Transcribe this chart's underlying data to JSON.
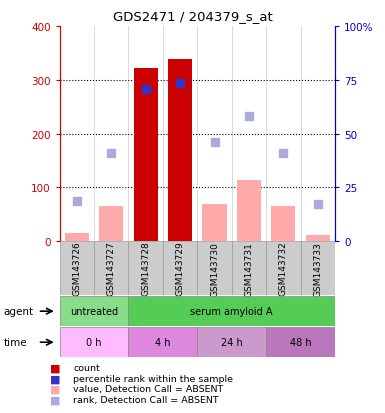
{
  "title": "GDS2471 / 204379_s_at",
  "samples": [
    "GSM143726",
    "GSM143727",
    "GSM143728",
    "GSM143729",
    "GSM143730",
    "GSM143731",
    "GSM143732",
    "GSM143733"
  ],
  "count_values": [
    0,
    0,
    322,
    338,
    0,
    0,
    0,
    0
  ],
  "rank_present_values": [
    null,
    null,
    283,
    293,
    null,
    null,
    null,
    null
  ],
  "value_absent": [
    15,
    65,
    null,
    null,
    70,
    113,
    65,
    12
  ],
  "rank_absent_pct": [
    18.75,
    40.75,
    null,
    null,
    46.25,
    58.25,
    40.75,
    17.5
  ],
  "bar_color_red": "#cc0000",
  "bar_color_pink": "#ffaaaa",
  "dot_color_blue": "#3333cc",
  "dot_color_lightblue": "#aaaadd",
  "ylim_left": [
    0,
    400
  ],
  "ylim_right": [
    0,
    100
  ],
  "yticks_left": [
    0,
    100,
    200,
    300,
    400
  ],
  "ytick_labels_left": [
    "0",
    "100",
    "200",
    "300",
    "400"
  ],
  "yticks_right": [
    0,
    25,
    50,
    75,
    100
  ],
  "ytick_labels_right": [
    "0",
    "25",
    "50",
    "75",
    "100%"
  ],
  "agent_untreated_color": "#88dd88",
  "agent_serum_color": "#55cc55",
  "time_color_0h": "#ffbbff",
  "time_color_4h": "#dd88dd",
  "time_color_24h": "#cc99cc",
  "time_color_48h": "#bb77bb",
  "sample_bg_color": "#cccccc",
  "axis_label_color_left": "#cc0000",
  "axis_label_color_right": "#0000cc",
  "gridline_color": "#000000"
}
